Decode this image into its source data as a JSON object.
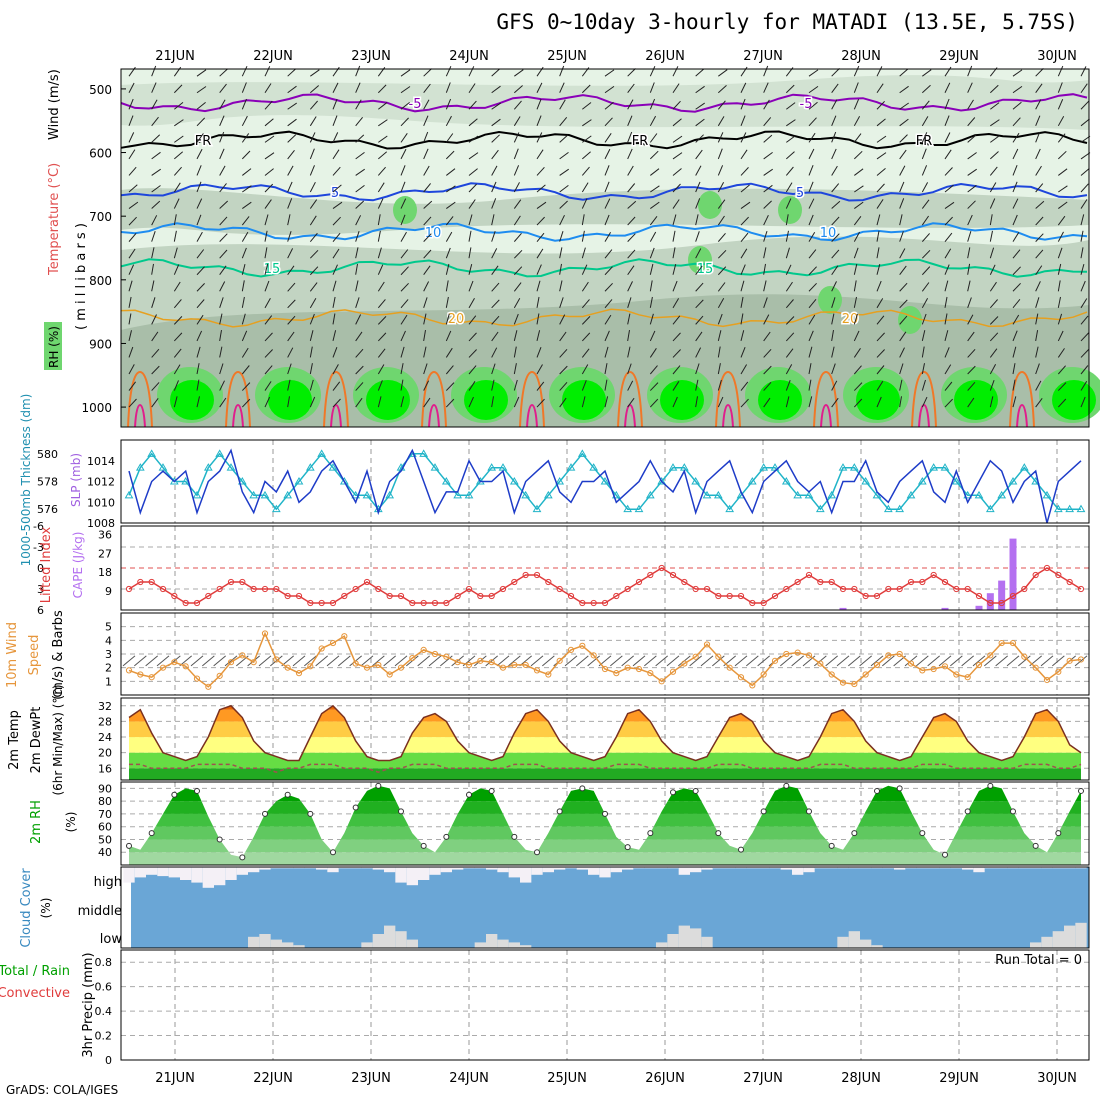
{
  "title": "GFS 0~10day 3-hourly for MATADI (13.5E, 5.75S)",
  "credit": "GrADS: COLA/IGES",
  "date_labels": [
    "21JUN",
    "22JUN",
    "23JUN",
    "24JUN",
    "25JUN",
    "26JUN",
    "27JUN",
    "28JUN",
    "29JUN",
    "30JUN"
  ],
  "colors": {
    "rh_light": "#e6f3e6",
    "rh_mid": "#c2d4c2",
    "rh_dark": "#a9bea9",
    "rh_green": "#6fd66f",
    "rh_bright": "#00ee00",
    "temp_m5": "#8a00b8",
    "temp_fr": "#000000",
    "temp_5": "#1e46dc",
    "temp_10": "#1e8cf0",
    "temp_15": "#00c88c",
    "temp_20": "#e6a020",
    "temp_25": "#f07828",
    "temp_30": "#e01e8c",
    "slp": "#1e3cc8",
    "thickness": "#20b4c8",
    "lifted": "#e03c3c",
    "cape": "#b470f0",
    "wind10": "#e6963c",
    "t2m_max": "#e66400",
    "dewpt": "#a05050",
    "rh2m": "#00a000",
    "cloud": "#6aa6d6",
    "cloud_fill": "#dcdcdc"
  },
  "panels": {
    "upper": {
      "title_parts": [
        "RH (%)",
        "Temperature (°C)",
        "Wind (m/s)"
      ],
      "yaxis_label": "( m i l l i b a r s )",
      "pressure_ticks": [
        500,
        600,
        700,
        800,
        900,
        1000
      ],
      "contour_labels": {
        "minus5": "-5",
        "freezing": "FR",
        "plus5": "5",
        "plus10": "10",
        "plus15": "15",
        "plus20": "20",
        "rh30": "30",
        "rh50": "50"
      }
    },
    "slp": {
      "left_label": "1000-500mb Thickness (dm)",
      "right_label": "SLP (mb)",
      "thickness_ticks": [
        576,
        578,
        580
      ],
      "slp_ticks": [
        1008,
        1010,
        1012,
        1014
      ]
    },
    "li": {
      "left_label": "Lifted Index",
      "right_label": "CAPE (J/kg)",
      "li_ticks": [
        "-6",
        "-3",
        "0",
        "3",
        "6"
      ],
      "cape_ticks": [
        9,
        18,
        27,
        36
      ]
    },
    "wind": {
      "label_line1": "10m Wind",
      "label_line2": "Speed",
      "label_line3": "(m/s) & Barbs",
      "ticks": [
        1,
        2,
        3,
        4,
        5
      ]
    },
    "temp": {
      "label_line1": "2m Temp",
      "label_line2": "2m DewPt",
      "label_line3": "(6hr Min/Max) (°C)",
      "ticks": [
        16,
        20,
        24,
        28,
        32
      ]
    },
    "rh": {
      "label": "2m RH",
      "unit": "(%)",
      "ticks": [
        40,
        50,
        60,
        70,
        80,
        90
      ]
    },
    "cloud": {
      "label": "Cloud Cover",
      "unit": "(%)",
      "levels": [
        "high",
        "middle",
        "low"
      ]
    },
    "precip": {
      "label_left": "Total / Rain",
      "label_left2": "Convective",
      "axis_label": "3hr Precip (mm)",
      "ticks": [
        "0",
        "0.2",
        "0.4",
        "0.6",
        "0.8"
      ],
      "run_total": "Run Total = 0"
    }
  },
  "chart_data": [
    {
      "type": "line",
      "title": "1000-500mb Thickness (dm) / SLP (mb)",
      "series": [
        {
          "name": "SLP (mb)",
          "values": [
            1013,
            1009,
            1012,
            1013,
            1012,
            1013,
            1009,
            1012,
            1013,
            1015,
            1011,
            1009,
            1012,
            1011,
            1013,
            1010,
            1011,
            1013,
            1014,
            1012,
            1010,
            1013,
            1009,
            1012,
            1013,
            1015,
            1012,
            1009,
            1011,
            1011,
            1014,
            1012,
            1012,
            1013,
            1009,
            1012,
            1013,
            1014,
            1011,
            1010,
            1012,
            1012,
            1013,
            1010,
            1011,
            1012,
            1014,
            1012,
            1011,
            1013,
            1009,
            1012,
            1013,
            1014,
            1011,
            1009,
            1012,
            1013,
            1014,
            1012,
            1011,
            1012,
            1009,
            1012,
            1012,
            1014,
            1011,
            1010,
            1012,
            1013,
            1014,
            1011,
            1010,
            1013,
            1010,
            1012,
            1014,
            1013,
            1010,
            1012,
            1013,
            1008,
            1012,
            1013,
            1014
          ]
        },
        {
          "name": "1000-500mb Thickness (dm)",
          "values": [
            577,
            579,
            580,
            579,
            578,
            578,
            577,
            579,
            580,
            579,
            578,
            577,
            577,
            576,
            577,
            578,
            579,
            580,
            579,
            578,
            577,
            577,
            576,
            577,
            579,
            580,
            580,
            579,
            578,
            577,
            577,
            578,
            579,
            579,
            578,
            577,
            576,
            577,
            578,
            579,
            580,
            579,
            578,
            577,
            576,
            576,
            577,
            578,
            579,
            579,
            578,
            577,
            577,
            576,
            577,
            578,
            579,
            579,
            578,
            577,
            577,
            576,
            577,
            579,
            579,
            578,
            577,
            576,
            576,
            577,
            578,
            579,
            579,
            578,
            577,
            577,
            576,
            577,
            578,
            579,
            578,
            577,
            576,
            576,
            576
          ]
        }
      ],
      "xlabel": "",
      "ylim_slp": [
        1008,
        1016
      ],
      "ylim_thickness": [
        575,
        581
      ]
    },
    {
      "type": "bar",
      "title": "Lifted Index / CAPE (J/kg)",
      "series": [
        {
          "name": "Lifted Index",
          "values": [
            3,
            2,
            2,
            3,
            4,
            5,
            5,
            4,
            3,
            2,
            2,
            3,
            3,
            3,
            4,
            4,
            5,
            5,
            5,
            4,
            3,
            2,
            3,
            4,
            4,
            5,
            5,
            5,
            5,
            4,
            3,
            4,
            4,
            3,
            2,
            1,
            1,
            2,
            3,
            4,
            5,
            5,
            5,
            4,
            3,
            2,
            1,
            0,
            1,
            2,
            3,
            3,
            4,
            4,
            4,
            5,
            5,
            4,
            3,
            2,
            1,
            2,
            2,
            3,
            3,
            4,
            4,
            3,
            3,
            2,
            2,
            1,
            2,
            3,
            3,
            4,
            5,
            5,
            4,
            3,
            1,
            0,
            1,
            2,
            3
          ]
        },
        {
          "name": "CAPE (J/kg)",
          "values": [
            0,
            0,
            0,
            0,
            0,
            0,
            0,
            0,
            0,
            0,
            0,
            0,
            0,
            0,
            0,
            0,
            0,
            0,
            0,
            0,
            0,
            0,
            0,
            0,
            0,
            0,
            0,
            0,
            0,
            0,
            0,
            0,
            0,
            0,
            0,
            0,
            0,
            0,
            0,
            0,
            0,
            0,
            0,
            0,
            0,
            0,
            0,
            0,
            0,
            0,
            0,
            0,
            0,
            0,
            0,
            0,
            0,
            0,
            0,
            0,
            0,
            0,
            0,
            1,
            0,
            0,
            0,
            0,
            0,
            0,
            0,
            0,
            1,
            0,
            0,
            2,
            8,
            14,
            34,
            0,
            0,
            0,
            0,
            0,
            0
          ]
        }
      ],
      "ylim_li": [
        6,
        -6
      ],
      "ylim_cape": [
        0,
        40
      ]
    },
    {
      "type": "line",
      "title": "10m Wind Speed (m/s)",
      "series": [
        {
          "name": "10m Wind Speed",
          "values": [
            1.8,
            1.5,
            1.3,
            2.0,
            2.4,
            2.1,
            1.2,
            0.6,
            1.4,
            2.4,
            2.9,
            2.4,
            4.5,
            2.6,
            2.0,
            1.6,
            2.1,
            3.4,
            3.8,
            4.3,
            2.3,
            2.0,
            2.2,
            1.5,
            2.0,
            2.7,
            3.3,
            3.0,
            2.8,
            2.4,
            2.2,
            2.5,
            2.4,
            2.0,
            2.2,
            2.2,
            1.8,
            1.5,
            2.5,
            3.3,
            3.6,
            2.9,
            1.9,
            1.6,
            2.0,
            1.9,
            1.6,
            1.0,
            1.7,
            2.3,
            2.8,
            3.7,
            2.8,
            2.0,
            1.3,
            0.7,
            1.5,
            2.5,
            3.0,
            3.1,
            2.9,
            2.3,
            1.5,
            0.9,
            0.8,
            1.5,
            2.2,
            2.9,
            3.0,
            2.3,
            1.8,
            1.9,
            2.1,
            1.5,
            1.3,
            2.2,
            2.9,
            3.8,
            3.8,
            2.8,
            2.0,
            1.1,
            1.7,
            2.5,
            2.6
          ]
        }
      ],
      "ylim": [
        0,
        6
      ]
    },
    {
      "type": "area",
      "title": "2m Temp / 2m DewPt (°C)",
      "series": [
        {
          "name": "2m Temp",
          "values": [
            29,
            31,
            25,
            20,
            19,
            18,
            19,
            24,
            31,
            32,
            29,
            23,
            20,
            19,
            18,
            18,
            24,
            30,
            32,
            29,
            23,
            19,
            18,
            18,
            19,
            25,
            29,
            30,
            28,
            23,
            20,
            19,
            18,
            19,
            25,
            30,
            31,
            28,
            23,
            20,
            19,
            18,
            19,
            24,
            30,
            31,
            28,
            23,
            20,
            19,
            18,
            19,
            24,
            29,
            30,
            28,
            23,
            20,
            19,
            18,
            19,
            24,
            30,
            31,
            28,
            23,
            20,
            19,
            18,
            19,
            24,
            29,
            30,
            28,
            23,
            20,
            19,
            18,
            19,
            24,
            30,
            31,
            28,
            22,
            20
          ]
        },
        {
          "name": "2m DewPt",
          "values": [
            17,
            17,
            16,
            16,
            16,
            16,
            17,
            17,
            17,
            17,
            16,
            16,
            16,
            15,
            16,
            16,
            17,
            17,
            17,
            16,
            16,
            16,
            15,
            16,
            16,
            17,
            17,
            17,
            16,
            16,
            16,
            16,
            16,
            16,
            17,
            17,
            17,
            16,
            16,
            16,
            16,
            16,
            16,
            17,
            17,
            17,
            16,
            16,
            16,
            16,
            16,
            16,
            17,
            17,
            17,
            16,
            16,
            16,
            16,
            16,
            16,
            17,
            17,
            17,
            16,
            16,
            16,
            16,
            16,
            16,
            17,
            17,
            17,
            16,
            16,
            16,
            16,
            16,
            16,
            17,
            17,
            17,
            16,
            16,
            17
          ]
        }
      ],
      "ylim": [
        13,
        34
      ]
    },
    {
      "type": "area",
      "title": "2m RH (%)",
      "series": [
        {
          "name": "2m RH",
          "values": [
            45,
            42,
            55,
            70,
            85,
            90,
            88,
            68,
            50,
            38,
            36,
            52,
            70,
            80,
            85,
            82,
            70,
            50,
            40,
            55,
            75,
            88,
            92,
            90,
            72,
            55,
            45,
            40,
            52,
            70,
            85,
            90,
            88,
            70,
            52,
            42,
            40,
            55,
            72,
            88,
            90,
            88,
            70,
            52,
            44,
            42,
            55,
            72,
            87,
            90,
            88,
            72,
            55,
            45,
            42,
            55,
            72,
            88,
            92,
            90,
            72,
            55,
            45,
            42,
            55,
            72,
            88,
            92,
            90,
            72,
            55,
            42,
            38,
            55,
            72,
            88,
            92,
            90,
            72,
            55,
            45,
            40,
            55,
            72,
            88
          ]
        }
      ],
      "ylim": [
        30,
        95
      ]
    },
    {
      "type": "bar",
      "title": "Cloud Cover (%)",
      "series": [
        {
          "name": "high",
          "values": [
            60,
            40,
            30,
            35,
            40,
            50,
            60,
            80,
            70,
            50,
            30,
            20,
            10,
            5,
            5,
            5,
            5,
            10,
            20,
            5,
            5,
            5,
            10,
            20,
            60,
            70,
            50,
            30,
            20,
            10,
            5,
            5,
            10,
            20,
            40,
            60,
            30,
            20,
            10,
            5,
            10,
            30,
            40,
            20,
            10,
            5,
            5,
            5,
            5,
            30,
            20,
            10,
            5,
            5,
            5,
            5,
            5,
            5,
            10,
            30,
            20,
            5,
            5,
            5,
            5,
            5,
            5,
            5,
            10,
            5,
            5,
            5,
            5,
            5,
            10,
            20,
            5,
            5,
            5,
            5,
            5,
            5,
            5,
            5,
            5
          ]
        },
        {
          "name": "low",
          "values": [
            0,
            0,
            0,
            0,
            0,
            0,
            0,
            0,
            0,
            0,
            0,
            40,
            50,
            30,
            20,
            10,
            0,
            0,
            0,
            0,
            0,
            20,
            50,
            80,
            60,
            30,
            0,
            0,
            0,
            0,
            0,
            20,
            50,
            30,
            20,
            10,
            0,
            0,
            0,
            0,
            0,
            0,
            0,
            0,
            0,
            0,
            0,
            20,
            50,
            80,
            70,
            40,
            0,
            0,
            0,
            0,
            0,
            0,
            0,
            0,
            0,
            0,
            0,
            40,
            60,
            30,
            10,
            0,
            0,
            0,
            0,
            0,
            0,
            0,
            0,
            0,
            0,
            0,
            0,
            0,
            20,
            40,
            60,
            80,
            90
          ]
        }
      ],
      "ylim": [
        0,
        100
      ]
    },
    {
      "type": "bar",
      "title": "3hr Precip (mm)",
      "series": [
        {
          "name": "Total / Rain",
          "values": []
        },
        {
          "name": "Convective",
          "values": []
        }
      ],
      "ylim": [
        0,
        0.9
      ]
    }
  ]
}
